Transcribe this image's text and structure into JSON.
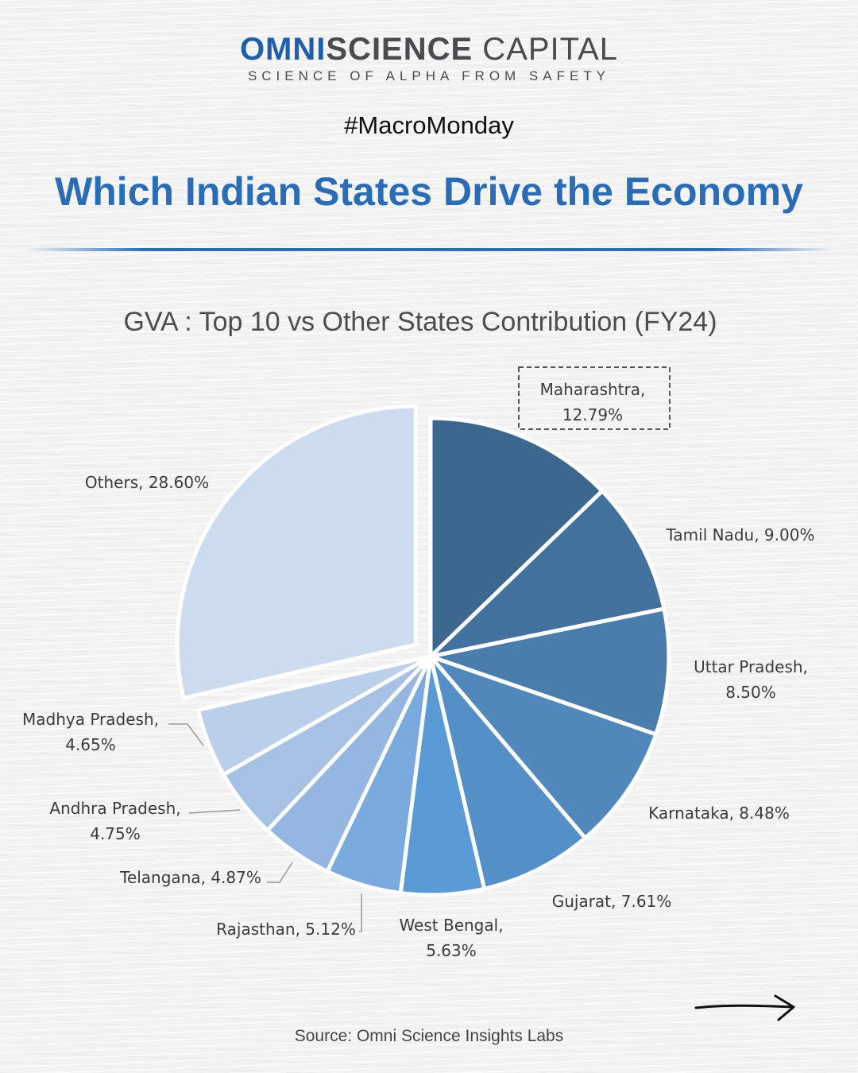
{
  "brand": {
    "name_part1": "OMNI",
    "name_part2": "SCIENCE",
    "name_part3": " CAPITAL",
    "tagline": "SCIENCE OF ALPHA FROM SAFETY"
  },
  "hashtag": "#MacroMonday",
  "headline": "Which Indian States Drive the Economy",
  "source": "Source: Omni Science Insights Labs",
  "next_icon": "arrow-right-icon",
  "colors": {
    "accent": "#2a6cb5",
    "slices": [
      "#3c6890",
      "#43719d",
      "#4a7dab",
      "#5088bc",
      "#558fc7",
      "#5b9bd5",
      "#7aa9dd",
      "#94b6e0",
      "#a7c1e4",
      "#bbcfeb",
      "#ccdcee"
    ]
  },
  "chart_data": {
    "type": "pie",
    "title": "GVA : Top 10 vs Other States Contribution (FY24)",
    "unit": "%",
    "categories": [
      "Maharashtra",
      "Tamil Nadu",
      "Uttar Pradesh",
      "Karnataka",
      "Gujarat",
      "West Bengal",
      "Rajasthan",
      "Telangana",
      "Andhra Pradesh",
      "Madhya Pradesh",
      "Others"
    ],
    "values": [
      12.79,
      9.0,
      8.5,
      8.48,
      7.61,
      5.63,
      5.12,
      4.87,
      4.75,
      4.65,
      28.6
    ],
    "labels": [
      [
        "Maharashtra,",
        "12.79%"
      ],
      [
        "Tamil Nadu, 9.00%"
      ],
      [
        "Uttar Pradesh,",
        "8.50%"
      ],
      [
        "Karnataka, 8.48%"
      ],
      [
        "Gujarat, 7.61%"
      ],
      [
        "West Bengal,",
        "5.63%"
      ],
      [
        "Rajasthan, 5.12%"
      ],
      [
        "Telangana, 4.87%"
      ],
      [
        "Andhra Pradesh,",
        "4.75%"
      ],
      [
        "Madhya Pradesh,",
        "4.65%"
      ],
      [
        "Others, 28.60%"
      ]
    ],
    "exploded": [
      "Others"
    ],
    "highlighted": [
      "Maharashtra"
    ],
    "legend": "none"
  }
}
